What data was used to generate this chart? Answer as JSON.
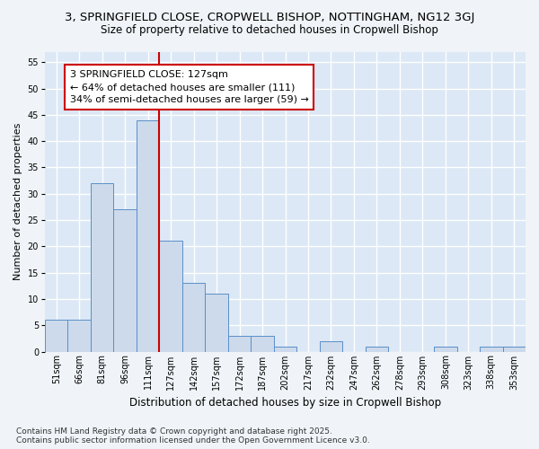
{
  "title1": "3, SPRINGFIELD CLOSE, CROPWELL BISHOP, NOTTINGHAM, NG12 3GJ",
  "title2": "Size of property relative to detached houses in Cropwell Bishop",
  "xlabel": "Distribution of detached houses by size in Cropwell Bishop",
  "ylabel": "Number of detached properties",
  "categories": [
    "51sqm",
    "66sqm",
    "81sqm",
    "96sqm",
    "111sqm",
    "127sqm",
    "142sqm",
    "157sqm",
    "172sqm",
    "187sqm",
    "202sqm",
    "217sqm",
    "232sqm",
    "247sqm",
    "262sqm",
    "278sqm",
    "293sqm",
    "308sqm",
    "323sqm",
    "338sqm",
    "353sqm"
  ],
  "values": [
    6,
    6,
    32,
    27,
    44,
    21,
    13,
    11,
    3,
    3,
    1,
    0,
    2,
    0,
    1,
    0,
    0,
    1,
    0,
    1,
    1
  ],
  "bar_color": "#ccdaeb",
  "bar_edge_color": "#5b8fc9",
  "highlight_index": 5,
  "vline_color": "#cc0000",
  "annotation_line1": "3 SPRINGFIELD CLOSE: 127sqm",
  "annotation_line2": "← 64% of detached houses are smaller (111)",
  "annotation_line3": "34% of semi-detached houses are larger (59) →",
  "annotation_box_color": "#ffffff",
  "annotation_box_edge_color": "#cc0000",
  "ylim": [
    0,
    57
  ],
  "yticks": [
    0,
    5,
    10,
    15,
    20,
    25,
    30,
    35,
    40,
    45,
    50,
    55
  ],
  "fig_bg_color": "#f0f4f8",
  "plot_bg_color": "#dce8f5",
  "grid_color": "#ffffff",
  "footer": "Contains HM Land Registry data © Crown copyright and database right 2025.\nContains public sector information licensed under the Open Government Licence v3.0.",
  "title1_fontsize": 9.5,
  "title2_fontsize": 8.5,
  "xlabel_fontsize": 8.5,
  "ylabel_fontsize": 8,
  "tick_fontsize": 7,
  "annotation_fontsize": 8,
  "footer_fontsize": 6.5
}
